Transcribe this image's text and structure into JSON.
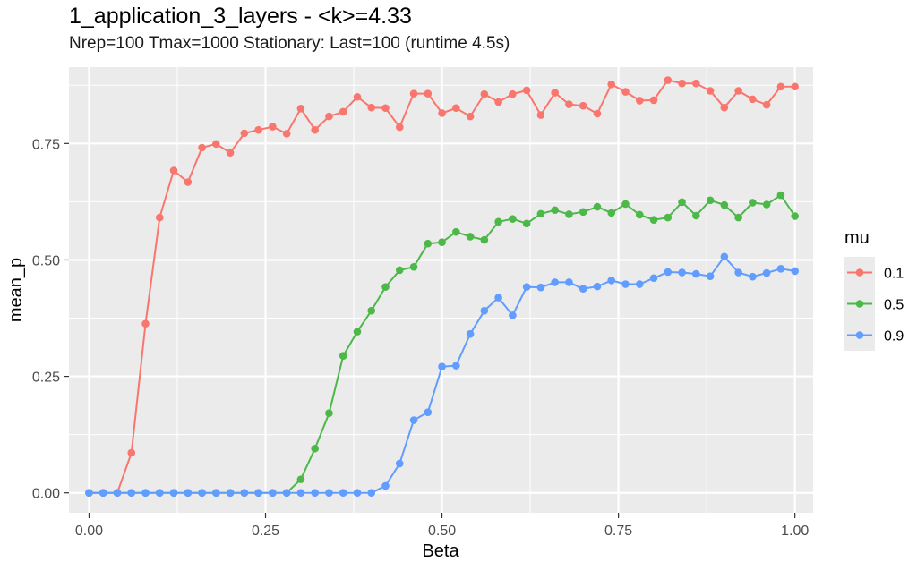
{
  "chart_data": {
    "type": "line",
    "title": "1_application_3_layers - <k>=4.33",
    "subtitle": "Nrep=100 Tmax=1000 Stationary: Last=100 (runtime 4.5s)",
    "xlabel": "Beta",
    "ylabel": "mean_p",
    "xlim": [
      -0.0285,
      1.0258
    ],
    "ylim": [
      -0.0428,
      0.9139
    ],
    "x_ticks": [
      0,
      0.25,
      0.5,
      0.75,
      1.0
    ],
    "x_tick_labels": [
      "0.00",
      "0.25",
      "0.50",
      "0.75",
      "1.00"
    ],
    "y_ticks": [
      0,
      0.25,
      0.5,
      0.75
    ],
    "y_tick_labels": [
      "0.00",
      "0.25",
      "0.50",
      "0.75"
    ],
    "grid": true,
    "legend": {
      "title": "mu",
      "position": "right"
    },
    "x": [
      0,
      0.02,
      0.04,
      0.06,
      0.08,
      0.1,
      0.12,
      0.14,
      0.16,
      0.18,
      0.2,
      0.22,
      0.24,
      0.26,
      0.28,
      0.3,
      0.32,
      0.34,
      0.36,
      0.38,
      0.4,
      0.42,
      0.44,
      0.46,
      0.48,
      0.5,
      0.52,
      0.54,
      0.56,
      0.58,
      0.6,
      0.62,
      0.64,
      0.66,
      0.68,
      0.7,
      0.72,
      0.74,
      0.76,
      0.78,
      0.8,
      0.82,
      0.84,
      0.86,
      0.88,
      0.9,
      0.92,
      0.94,
      0.96,
      0.98,
      1.0
    ],
    "series": [
      {
        "name": "0.1",
        "color": "#F8766D",
        "values": [
          0,
          0,
          0,
          0.086,
          0.363,
          0.591,
          0.692,
          0.667,
          0.741,
          0.749,
          0.73,
          0.772,
          0.779,
          0.786,
          0.771,
          0.825,
          0.779,
          0.808,
          0.818,
          0.85,
          0.827,
          0.826,
          0.785,
          0.857,
          0.857,
          0.815,
          0.826,
          0.808,
          0.856,
          0.839,
          0.856,
          0.864,
          0.811,
          0.859,
          0.834,
          0.831,
          0.814,
          0.877,
          0.861,
          0.842,
          0.843,
          0.886,
          0.879,
          0.879,
          0.863,
          0.827,
          0.863,
          0.845,
          0.833,
          0.872,
          0.872
        ]
      },
      {
        "name": "0.5",
        "color": "#4CB848",
        "values": [
          0,
          0,
          0,
          0,
          0,
          0,
          0,
          0,
          0,
          0,
          0,
          0,
          0,
          0,
          0,
          0.029,
          0.095,
          0.171,
          0.294,
          0.346,
          0.391,
          0.442,
          0.478,
          0.485,
          0.535,
          0.538,
          0.56,
          0.55,
          0.543,
          0.582,
          0.588,
          0.578,
          0.599,
          0.607,
          0.598,
          0.603,
          0.614,
          0.601,
          0.62,
          0.597,
          0.586,
          0.591,
          0.624,
          0.595,
          0.628,
          0.618,
          0.591,
          0.623,
          0.619,
          0.639,
          0.594
        ]
      },
      {
        "name": "0.9",
        "color": "#619CFF",
        "values": [
          0,
          0,
          0,
          0,
          0,
          0,
          0,
          0,
          0,
          0,
          0,
          0,
          0,
          0,
          0,
          0,
          0,
          0,
          0,
          0,
          0,
          0.015,
          0.063,
          0.156,
          0.173,
          0.271,
          0.273,
          0.341,
          0.391,
          0.419,
          0.381,
          0.442,
          0.441,
          0.452,
          0.452,
          0.438,
          0.443,
          0.456,
          0.448,
          0.448,
          0.461,
          0.474,
          0.473,
          0.47,
          0.465,
          0.507,
          0.473,
          0.464,
          0.472,
          0.481,
          0.476
        ]
      }
    ]
  }
}
